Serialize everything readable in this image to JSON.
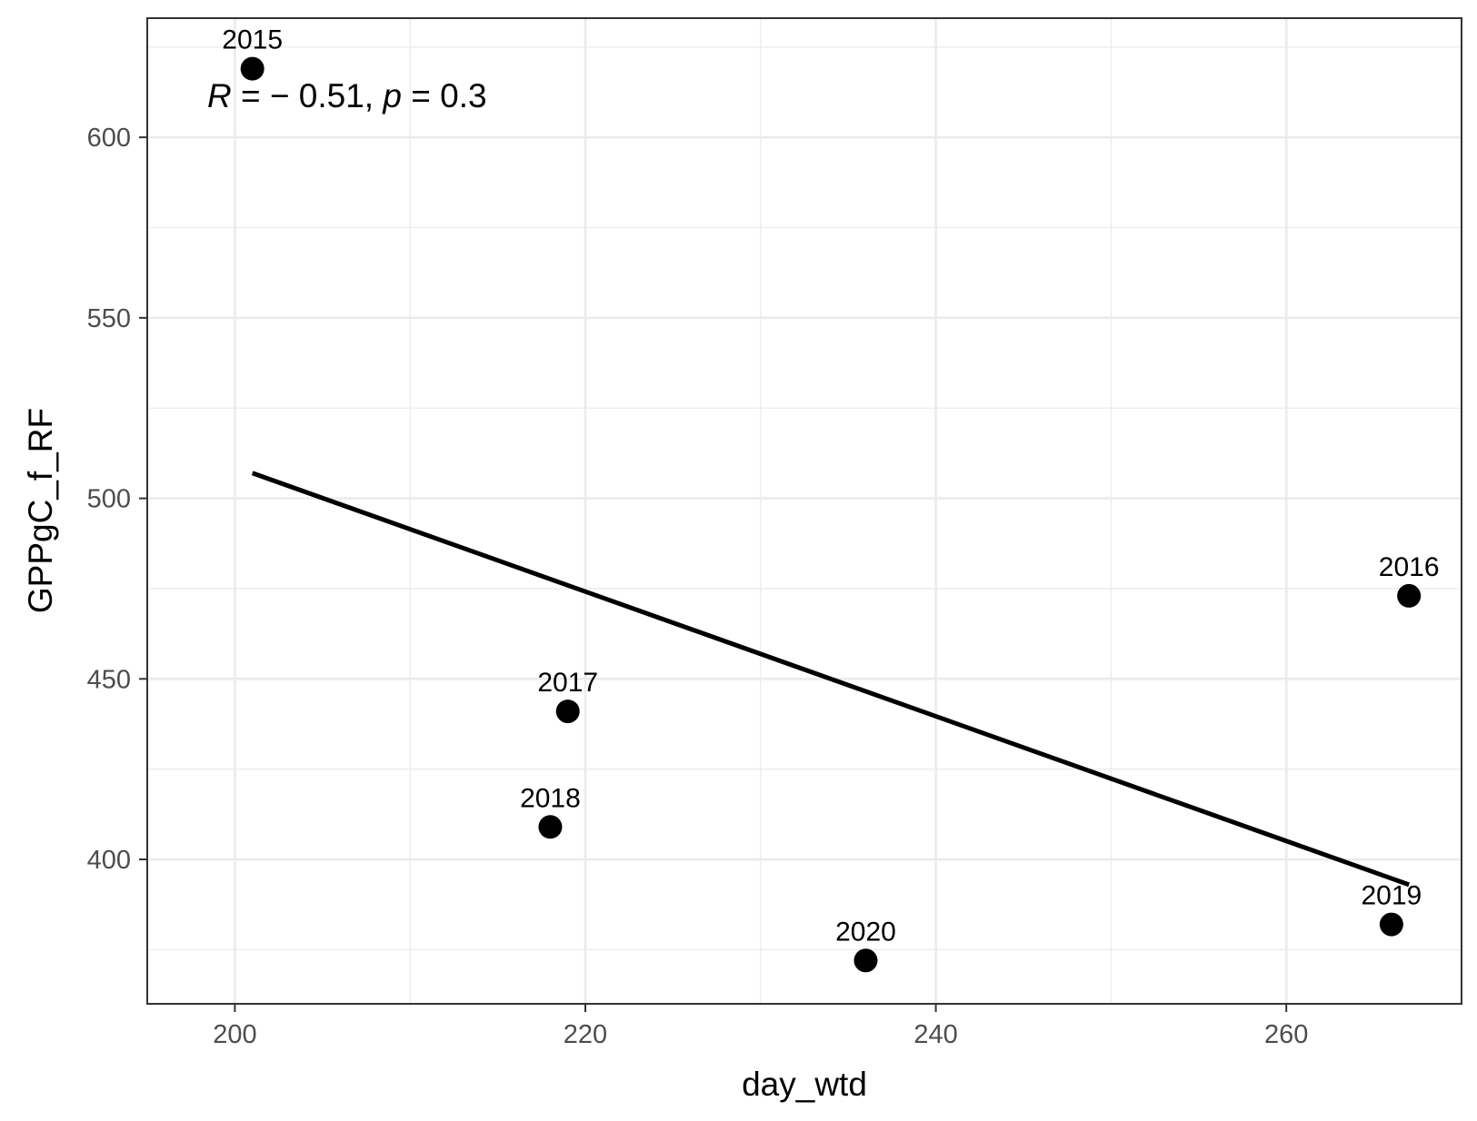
{
  "chart_data": {
    "type": "scatter",
    "xlabel": "day_wtd",
    "ylabel": "GPPgC_f_RF",
    "xlim": [
      195,
      270
    ],
    "ylim": [
      360,
      633
    ],
    "x_ticks": [
      200,
      220,
      240,
      260
    ],
    "y_ticks": [
      400,
      450,
      500,
      550,
      600
    ],
    "x_tick_labels": [
      "200",
      "220",
      "240",
      "260"
    ],
    "y_tick_labels": [
      "400",
      "450",
      "500",
      "550",
      "600"
    ],
    "grid": true,
    "colors": {
      "points": "#000000",
      "line": "#000000",
      "grid": "#ebebeb",
      "panel_border": "#333333",
      "tick_label": "#4d4d4d"
    },
    "points": [
      {
        "year": "2015",
        "x": 201,
        "y": 619
      },
      {
        "year": "2016",
        "x": 267,
        "y": 473
      },
      {
        "year": "2017",
        "x": 219,
        "y": 441
      },
      {
        "year": "2018",
        "x": 218,
        "y": 409
      },
      {
        "year": "2019",
        "x": 266,
        "y": 382
      },
      {
        "year": "2020",
        "x": 236,
        "y": 372
      }
    ],
    "regression_line": {
      "x": [
        201,
        267
      ],
      "y": [
        507,
        393
      ]
    },
    "annotation": {
      "r_symbol": "R",
      "r_text": " = − 0.51, ",
      "p_symbol": "p",
      "p_text": " = 0.3"
    }
  }
}
